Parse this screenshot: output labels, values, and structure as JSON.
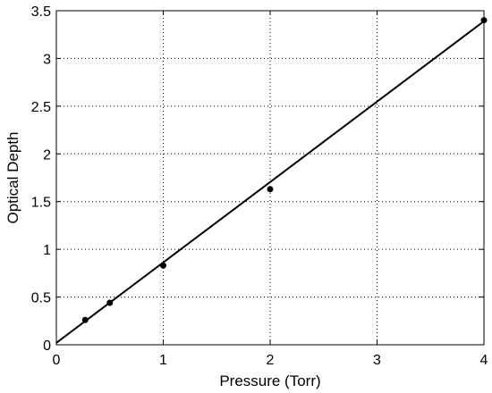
{
  "chart_data": {
    "type": "scatter",
    "title": "",
    "xlabel": "Pressure (Torr)",
    "ylabel": "Optical Depth",
    "xlim": [
      0,
      4
    ],
    "ylim": [
      0,
      3.5
    ],
    "xticks": [
      "0",
      "1",
      "2",
      "3",
      "4"
    ],
    "yticks": [
      "0",
      "0.5",
      "1",
      "1.5",
      "2",
      "2.5",
      "3",
      "3.5"
    ],
    "grid": true,
    "series": [
      {
        "kind": "points",
        "color": "#000000",
        "x": [
          0.27,
          0.5,
          1.0,
          2.0,
          4.0
        ],
        "y": [
          0.26,
          0.44,
          0.83,
          1.63,
          3.4
        ]
      },
      {
        "kind": "line",
        "color": "#000000",
        "x": [
          0,
          4.0
        ],
        "y": [
          0.02,
          3.39
        ]
      }
    ]
  }
}
